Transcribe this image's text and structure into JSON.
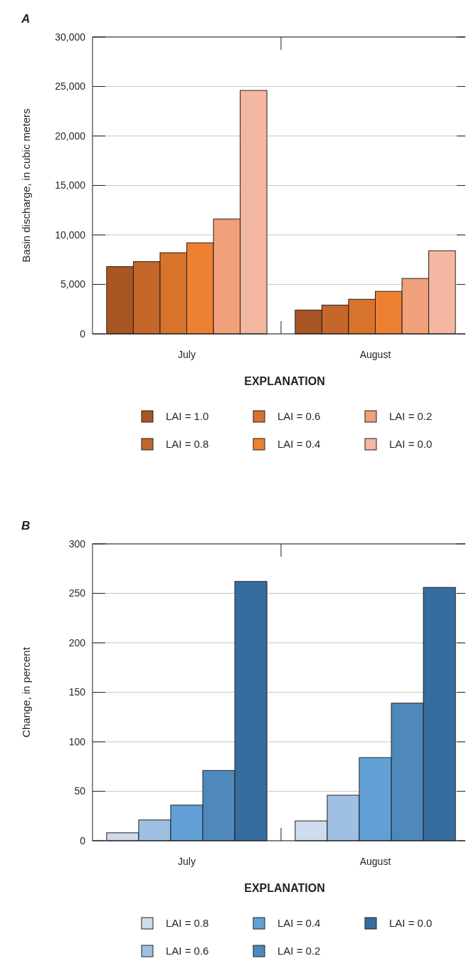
{
  "chart_data": [
    {
      "type": "bar",
      "title": "A",
      "ylabel": "Basin discharge, in cubic meters",
      "legend_title": "EXPLANATION",
      "categories": [
        "July",
        "August"
      ],
      "ylim": [
        0,
        30000
      ],
      "yticks": [
        {
          "value": 0,
          "label": "0"
        },
        {
          "value": 5000,
          "label": "5,000"
        },
        {
          "value": 10000,
          "label": "10,000"
        },
        {
          "value": 15000,
          "label": "15,000"
        },
        {
          "value": 20000,
          "label": "20,000"
        },
        {
          "value": 25000,
          "label": "25,000"
        },
        {
          "value": 30000,
          "label": "30,000"
        }
      ],
      "grid": "y",
      "legend": "bottom",
      "series": [
        {
          "name": "LAI = 1.0",
          "color": "#a95624",
          "values": [
            6800,
            2400
          ]
        },
        {
          "name": "LAI = 0.8",
          "color": "#c5662a",
          "values": [
            7300,
            2900
          ]
        },
        {
          "name": "LAI = 0.6",
          "color": "#d8732b",
          "values": [
            8200,
            3500
          ]
        },
        {
          "name": "LAI = 0.4",
          "color": "#ee8032",
          "values": [
            9200,
            4300
          ]
        },
        {
          "name": "LAI = 0.2",
          "color": "#f0a07a",
          "values": [
            11600,
            5600
          ]
        },
        {
          "name": "LAI = 0.0",
          "color": "#f4b7a1",
          "values": [
            24600,
            8400
          ]
        }
      ]
    },
    {
      "type": "bar",
      "title": "B",
      "ylabel": "Change, in percent",
      "legend_title": "EXPLANATION",
      "categories": [
        "July",
        "August"
      ],
      "ylim": [
        0,
        300
      ],
      "yticks": [
        0,
        50,
        100,
        150,
        200,
        250,
        300
      ],
      "grid": "y",
      "legend": "bottom",
      "series": [
        {
          "name": "LAI = 0.8",
          "color": "#cfdcee",
          "values": [
            8,
            20
          ]
        },
        {
          "name": "LAI = 0.6",
          "color": "#9fc0e3",
          "values": [
            21,
            46
          ]
        },
        {
          "name": "LAI = 0.4",
          "color": "#62a1d6",
          "values": [
            36,
            84
          ]
        },
        {
          "name": "LAI = 0.2",
          "color": "#4f88bb",
          "values": [
            71,
            139
          ]
        },
        {
          "name": "LAI = 0.0",
          "color": "#356e9e",
          "values": [
            262,
            256
          ]
        }
      ]
    }
  ]
}
